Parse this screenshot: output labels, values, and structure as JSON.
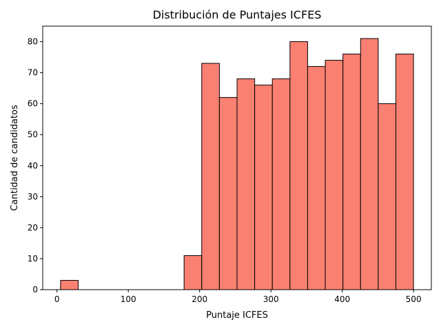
{
  "chart_data": {
    "type": "bar",
    "title": "Distribución de Puntajes ICFES",
    "xlabel": "Puntaje ICFES",
    "ylabel": "Cantidad de candidatos",
    "xlim": [
      -20,
      525
    ],
    "ylim": [
      0,
      85
    ],
    "xticks": [
      0,
      100,
      200,
      300,
      400,
      500
    ],
    "yticks": [
      0,
      10,
      20,
      30,
      40,
      50,
      60,
      70,
      80
    ],
    "bin_edges": [
      5,
      29.75,
      54.5,
      79.25,
      104,
      128.75,
      153.5,
      178.25,
      203,
      227.75,
      252.5,
      277.25,
      302,
      326.75,
      351.5,
      376.25,
      401,
      425.75,
      450.5,
      475.25,
      500
    ],
    "values": [
      3,
      0,
      0,
      0,
      0,
      0,
      0,
      11,
      73,
      62,
      68,
      66,
      68,
      80,
      72,
      74,
      76,
      81,
      60,
      76
    ],
    "bar_color": "#fa8072",
    "edge_color": "#000000",
    "grid": false,
    "legend": null
  }
}
